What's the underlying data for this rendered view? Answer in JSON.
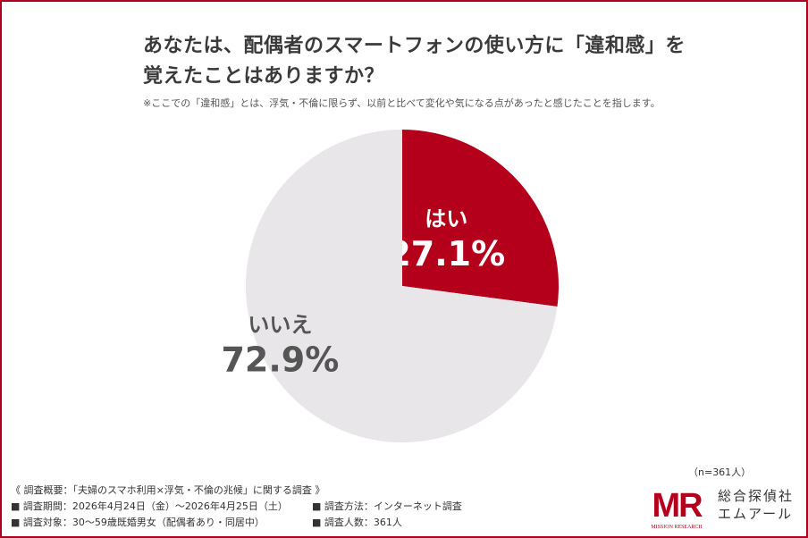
{
  "title": {
    "line1": "あなたは、配偶者のスマートフォンの使い方に「違和感」を",
    "line2": "覚えたことはありますか？"
  },
  "note": "※ここでの「違和感」とは、浮気・不倫に限らず、以前と比べて変化や気になる点があったと感じたことを指します。",
  "chart_data": {
    "type": "pie",
    "slices": [
      {
        "label": "はい",
        "value": 27.1,
        "value_label": "27.1%",
        "color": "#b5001c",
        "label_color": "#ffffff"
      },
      {
        "label": "いいえ",
        "value": 72.9,
        "value_label": "72.9%",
        "color": "#e8e6e8",
        "label_color": "#555555"
      }
    ],
    "start_angle_deg": 0,
    "direction": "clockwise"
  },
  "sample_size": "（n=361人）",
  "footer": {
    "overview": "《 調査概要：「夫婦のスマホ利用×浮気・不倫の兆候」に関する調査 》",
    "period": "■ 調査期間：2026年4月24日（金）〜2026年4月25日（土）",
    "method": "■ 調査方法：インターネット調査",
    "target": "■ 調査対象：30〜59歳既婚男女（配偶者あり・同居中）",
    "count": "■ 調査人数：361人"
  },
  "logo": {
    "mark": "MR",
    "subtitle": "MISSION RESEARCH",
    "name_line1": "総合探偵社",
    "name_line2": "エムアール",
    "color": "#b5001c"
  }
}
